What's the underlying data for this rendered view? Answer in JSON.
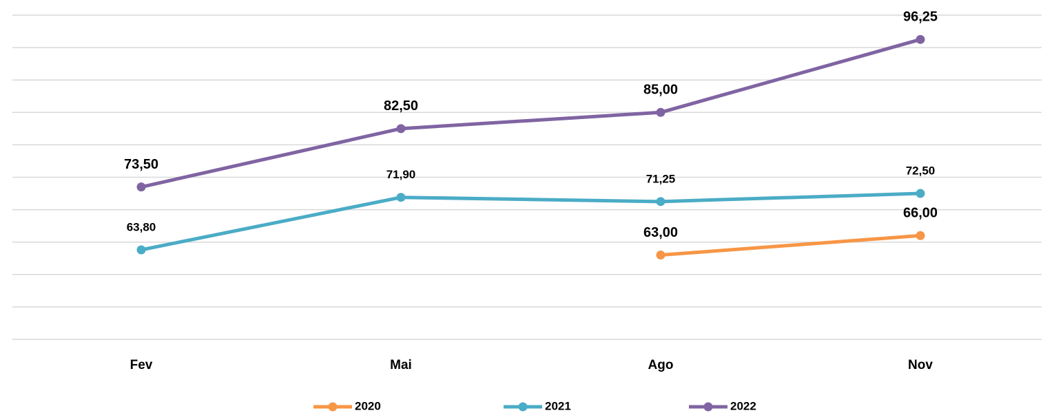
{
  "chart_data": {
    "type": "line",
    "categories": [
      "Fev",
      "Mai",
      "Ago",
      "Nov"
    ],
    "series": [
      {
        "name": "2020",
        "color": "#f79646",
        "values": [
          null,
          null,
          63,
          66
        ],
        "value_labels": [
          null,
          null,
          "63,00",
          "66,00"
        ]
      },
      {
        "name": "2021",
        "color": "#4bacc6",
        "values": [
          63.8,
          71.9,
          71.25,
          72.5
        ],
        "value_labels": [
          "63,80",
          "71,90",
          "71,25",
          "72,50"
        ]
      },
      {
        "name": "2022",
        "color": "#8064a2",
        "values": [
          73.5,
          82.5,
          85,
          96.25
        ],
        "value_labels": [
          "73,50",
          "82,50",
          "85,00",
          "96,25"
        ]
      }
    ],
    "ylim": [
      50,
      100
    ],
    "yticks": [
      50,
      55,
      60,
      65,
      70,
      75,
      80,
      85,
      90,
      95,
      100
    ],
    "grid": true,
    "legend": "bottom"
  }
}
